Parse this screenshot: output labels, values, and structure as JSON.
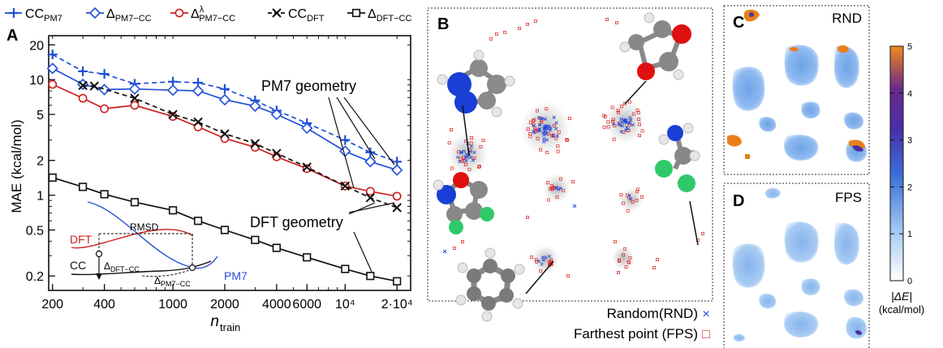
{
  "panel_labels": {
    "a": "A",
    "b": "B",
    "c": "C",
    "d": "D"
  },
  "chart_data": [
    {
      "type": "line",
      "panel": "A",
      "xlabel": "n",
      "xlabel_sub": "train",
      "ylabel": "MAE (kcal/mol)",
      "xscale": "log",
      "yscale": "log",
      "xlim": [
        190,
        24000
      ],
      "ylim": [
        0.15,
        24
      ],
      "x_ticks": [
        200,
        400,
        1000,
        2000,
        4000,
        6000,
        10000,
        20000
      ],
      "x_tick_labels": [
        "200",
        "400",
        "1000",
        "2000",
        "4000",
        "6000",
        "10⁴",
        "2·10⁴"
      ],
      "y_ticks": [
        0.2,
        0.5,
        1,
        2,
        5,
        10,
        20
      ],
      "y_tick_labels": [
        "0.2",
        "0.5",
        "1",
        "2",
        "5",
        "10",
        "20"
      ],
      "series": [
        {
          "name": "CC",
          "sub": "PM7",
          "color": "#1f4fd8",
          "marker": "plus",
          "dash": "6,4",
          "x": [
            200,
            300,
            400,
            600,
            1000,
            1400,
            2000,
            3000,
            4000,
            6000,
            10000,
            14000,
            20000
          ],
          "y": [
            16.5,
            11.8,
            11.2,
            9.2,
            9.6,
            9.4,
            8.3,
            6.6,
            5.4,
            4.2,
            3.0,
            2.35,
            1.95
          ]
        },
        {
          "name": "Δ",
          "sub": "PM7−CC",
          "color": "#1f4fd8",
          "marker": "diamond",
          "dash": "",
          "x": [
            200,
            300,
            400,
            600,
            1000,
            1400,
            2000,
            3000,
            4000,
            6000,
            10000,
            14000,
            20000
          ],
          "y": [
            12.5,
            9.1,
            8.2,
            8.3,
            8.1,
            8.0,
            6.7,
            5.9,
            5.0,
            3.8,
            2.4,
            1.95,
            1.65
          ]
        },
        {
          "name": "Δ",
          "sub": "PM7−CC",
          "sup": "λ",
          "color": "#cc1f1f",
          "marker": "circle",
          "dash": "",
          "x": [
            200,
            300,
            400,
            600,
            1000,
            1400,
            2000,
            3000,
            4000,
            6000,
            10000,
            14000,
            20000
          ],
          "y": [
            9.1,
            6.9,
            5.6,
            6.0,
            4.8,
            3.9,
            3.1,
            2.6,
            2.15,
            1.7,
            1.2,
            1.08,
            0.98
          ]
        },
        {
          "name": "CC",
          "sub": "DFT",
          "color": "#111111",
          "marker": "x",
          "dash": "6,4",
          "x": [
            300,
            350,
            600,
            1000,
            1400,
            2000,
            3000,
            4000,
            6000,
            10000,
            14000,
            20000
          ],
          "y": [
            8.9,
            8.8,
            6.9,
            5.0,
            4.3,
            3.4,
            2.8,
            2.3,
            1.75,
            1.2,
            0.95,
            0.78
          ]
        },
        {
          "name": "Δ",
          "sub": "DFT−CC",
          "color": "#111111",
          "marker": "square",
          "dash": "",
          "x": [
            200,
            300,
            400,
            600,
            1000,
            1400,
            2000,
            3000,
            4000,
            6000,
            10000,
            14000,
            20000
          ],
          "y": [
            1.42,
            1.18,
            1.02,
            0.87,
            0.74,
            0.6,
            0.5,
            0.41,
            0.35,
            0.29,
            0.23,
            0.2,
            0.18
          ]
        }
      ],
      "annotations": [
        "PM7 geometry",
        "DFT geometry"
      ],
      "inset": {
        "rmsd": "RMSD",
        "dft": "DFT",
        "cc": "CC",
        "pm7": "PM7",
        "d_dft_cc": "Δ",
        "d_dft_cc_sub": "DFT−CC",
        "d_pm7_cc": "Δ",
        "d_pm7_cc_sub": "PM7−CC"
      }
    }
  ],
  "panel_b": {
    "legend": [
      {
        "label": "Random(RND)",
        "symbol": "×",
        "color": "#2244dd"
      },
      {
        "label": "Farthest point (FPS)",
        "symbol": "□",
        "color": "#dd2222"
      }
    ]
  },
  "panel_c": {
    "label": "RND"
  },
  "panel_d": {
    "label": "FPS"
  },
  "colorbar": {
    "ticks": [
      "0",
      "1",
      "2",
      "3",
      "4",
      "5"
    ],
    "label_line1": "|ΔE|",
    "label_line2": "(kcal/mol)",
    "colors": [
      "#ffffff",
      "#7fb3ee",
      "#3a6fd8",
      "#4a2fa8",
      "#6a2a8a",
      "#e8801a"
    ]
  }
}
